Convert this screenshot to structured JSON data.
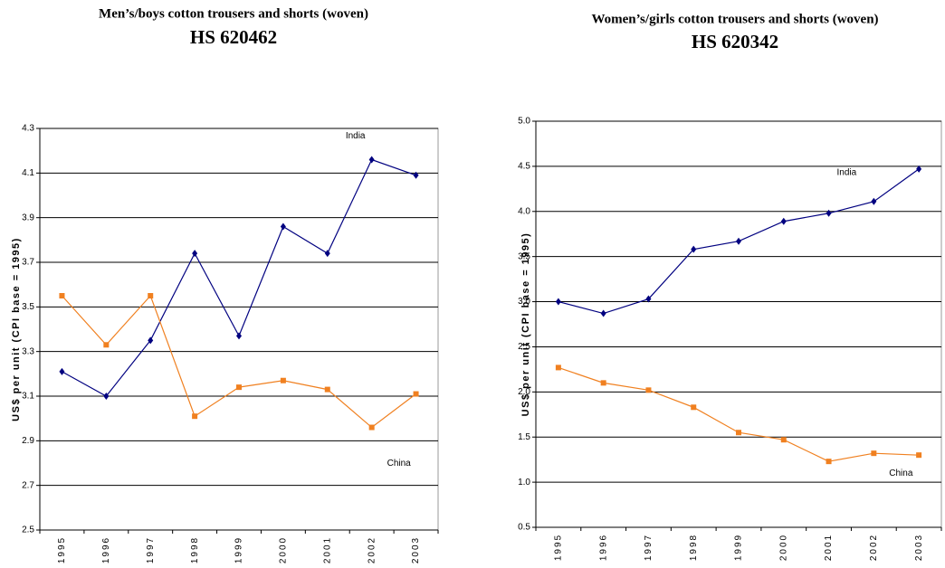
{
  "chart_data": [
    {
      "type": "line",
      "title": "Men’s/boys cotton trousers and shorts (woven)",
      "subtitle": "HS 620462",
      "y_label": "US$ per unit (CPI base = 1995)",
      "categories": [
        "1995",
        "1996",
        "1997",
        "1998",
        "1999",
        "2000",
        "2001",
        "2002",
        "2003"
      ],
      "series": [
        {
          "name": "India",
          "color": "#000080",
          "marker": "diamond",
          "values": [
            3.21,
            3.1,
            3.35,
            3.74,
            3.37,
            3.86,
            3.74,
            4.16,
            4.09
          ]
        },
        {
          "name": "China",
          "color": "#f08020",
          "marker": "square",
          "values": [
            3.55,
            3.33,
            3.55,
            3.01,
            3.14,
            3.17,
            3.13,
            2.96,
            3.11
          ]
        }
      ],
      "ylim": [
        2.5,
        4.3
      ],
      "yticks": [
        2.5,
        2.7,
        2.9,
        3.1,
        3.3,
        3.5,
        3.7,
        3.9,
        4.1,
        4.3
      ],
      "grid": true
    },
    {
      "type": "line",
      "title": "Women’s/girls cotton trousers and shorts (woven)",
      "subtitle": "HS 620342",
      "y_label": "US$ per unit (CPI base = 1995)",
      "categories": [
        "1995",
        "1996",
        "1997",
        "1998",
        "1999",
        "2000",
        "2001",
        "2002",
        "2003"
      ],
      "series": [
        {
          "name": "India",
          "color": "#000080",
          "marker": "diamond",
          "values": [
            3.0,
            2.87,
            3.03,
            3.58,
            3.67,
            3.89,
            3.98,
            4.11,
            4.47
          ]
        },
        {
          "name": "China",
          "color": "#f08020",
          "marker": "square",
          "values": [
            2.27,
            2.1,
            2.02,
            1.83,
            1.55,
            1.47,
            1.23,
            1.32,
            1.3
          ]
        }
      ],
      "ylim": [
        0.5,
        5.0
      ],
      "yticks": [
        0.5,
        {
          "value": 1.0,
          "label": "1.0"
        },
        1.5,
        {
          "value": 2.0,
          "label": "2.0"
        },
        2.5,
        {
          "value": 3.0,
          "label": "3.0"
        },
        3.5,
        {
          "value": 4.0,
          "label": "4.0"
        },
        4.5,
        {
          "value": 5.0,
          "label": "5.0"
        }
      ],
      "grid": true
    }
  ]
}
